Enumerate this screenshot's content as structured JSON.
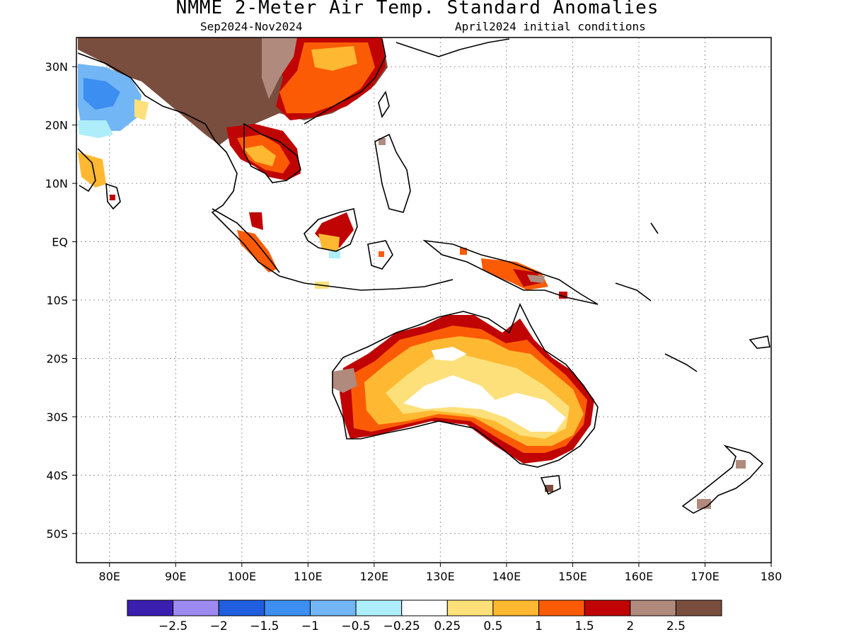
{
  "title": "NMME 2-Meter Air Temp. Standard Anomalies",
  "subtitle_left": "Sep2024-Nov2024",
  "subtitle_right": "April2024 initial conditions",
  "map": {
    "lat_labels": [
      "30N",
      "20N",
      "10N",
      "EQ",
      "10S",
      "20S",
      "30S",
      "40S",
      "50S"
    ],
    "lat_values": [
      30,
      20,
      10,
      0,
      -10,
      -20,
      -30,
      -40,
      -50
    ],
    "lon_labels": [
      "80E",
      "90E",
      "100E",
      "110E",
      "120E",
      "130E",
      "140E",
      "150E",
      "160E",
      "170E",
      "180"
    ],
    "lon_values": [
      80,
      90,
      100,
      110,
      120,
      130,
      140,
      150,
      160,
      170,
      180
    ],
    "lat_range": [
      -55,
      35
    ],
    "lon_range": [
      75,
      180
    ]
  },
  "colorbar": {
    "colors": [
      "#3a1fae",
      "#9c8af0",
      "#1f5fe0",
      "#3c8ef0",
      "#72b6f5",
      "#aeeefa",
      "#ffffff",
      "#fde07a",
      "#ffb831",
      "#fc5b05",
      "#c00303",
      "#b08a7d",
      "#7a4e3e"
    ],
    "tick_labels": [
      "-2.5",
      "-2",
      "-1.5",
      "-1",
      "-0.5",
      "-0.25",
      "0.25",
      "0.5",
      "1",
      "1.5",
      "2",
      "2.5"
    ]
  }
}
